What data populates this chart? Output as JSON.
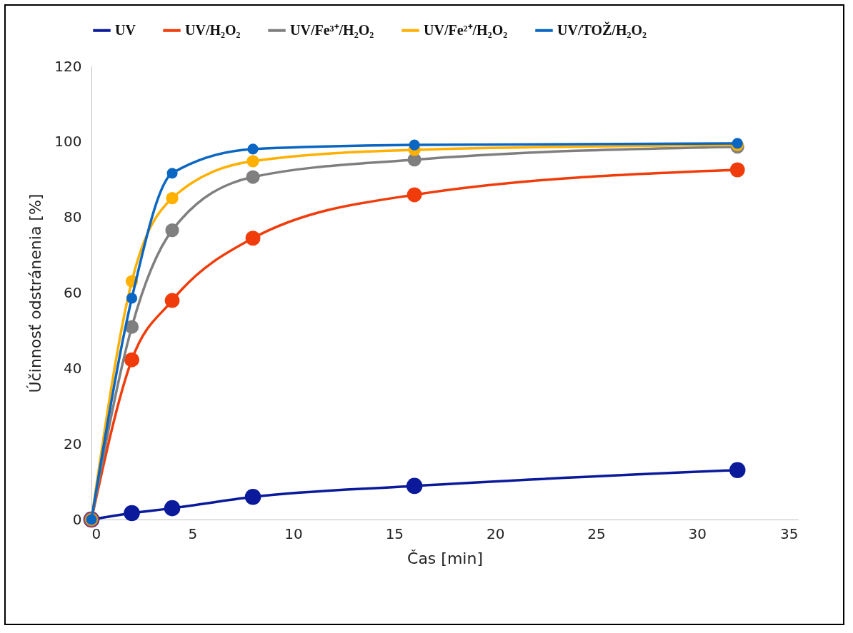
{
  "chart_data": {
    "type": "line",
    "xlabel": "Čas [min]",
    "ylabel": "Účinnosť odstránenia [%]",
    "x": [
      0,
      2,
      4,
      8,
      16,
      32
    ],
    "series": [
      {
        "name": "UV",
        "color": "#0a1a9a",
        "values": [
          0,
          1.7,
          3.0,
          6.0,
          8.9,
          13.1
        ]
      },
      {
        "name": "UV/H₂O₂",
        "color": "#f03c0a",
        "values": [
          0,
          42.3,
          58.0,
          74.5,
          86.0,
          92.6
        ]
      },
      {
        "name": "UV/Fe³⁺/H₂O₂",
        "color": "#7f7f7f",
        "values": [
          0,
          51.0,
          76.6,
          90.7,
          95.3,
          98.7
        ]
      },
      {
        "name": "UV/Fe²⁺/H₂O₂",
        "color": "#ffb000",
        "values": [
          0,
          63.1,
          85.1,
          94.9,
          97.9,
          99.2
        ]
      },
      {
        "name": "UV/TOŽ/H₂O₂",
        "color": "#0a66c2",
        "values": [
          0,
          58.6,
          91.7,
          98.1,
          99.2,
          99.6
        ]
      }
    ],
    "xlim": [
      0,
      35
    ],
    "xticks": [
      0,
      5,
      10,
      15,
      20,
      25,
      30,
      35
    ],
    "ylim": [
      0,
      120
    ],
    "yticks": [
      0,
      20,
      40,
      60,
      80,
      100,
      120
    ],
    "grid": false,
    "legend": "top",
    "marker": "circle",
    "line_style": "solid"
  }
}
